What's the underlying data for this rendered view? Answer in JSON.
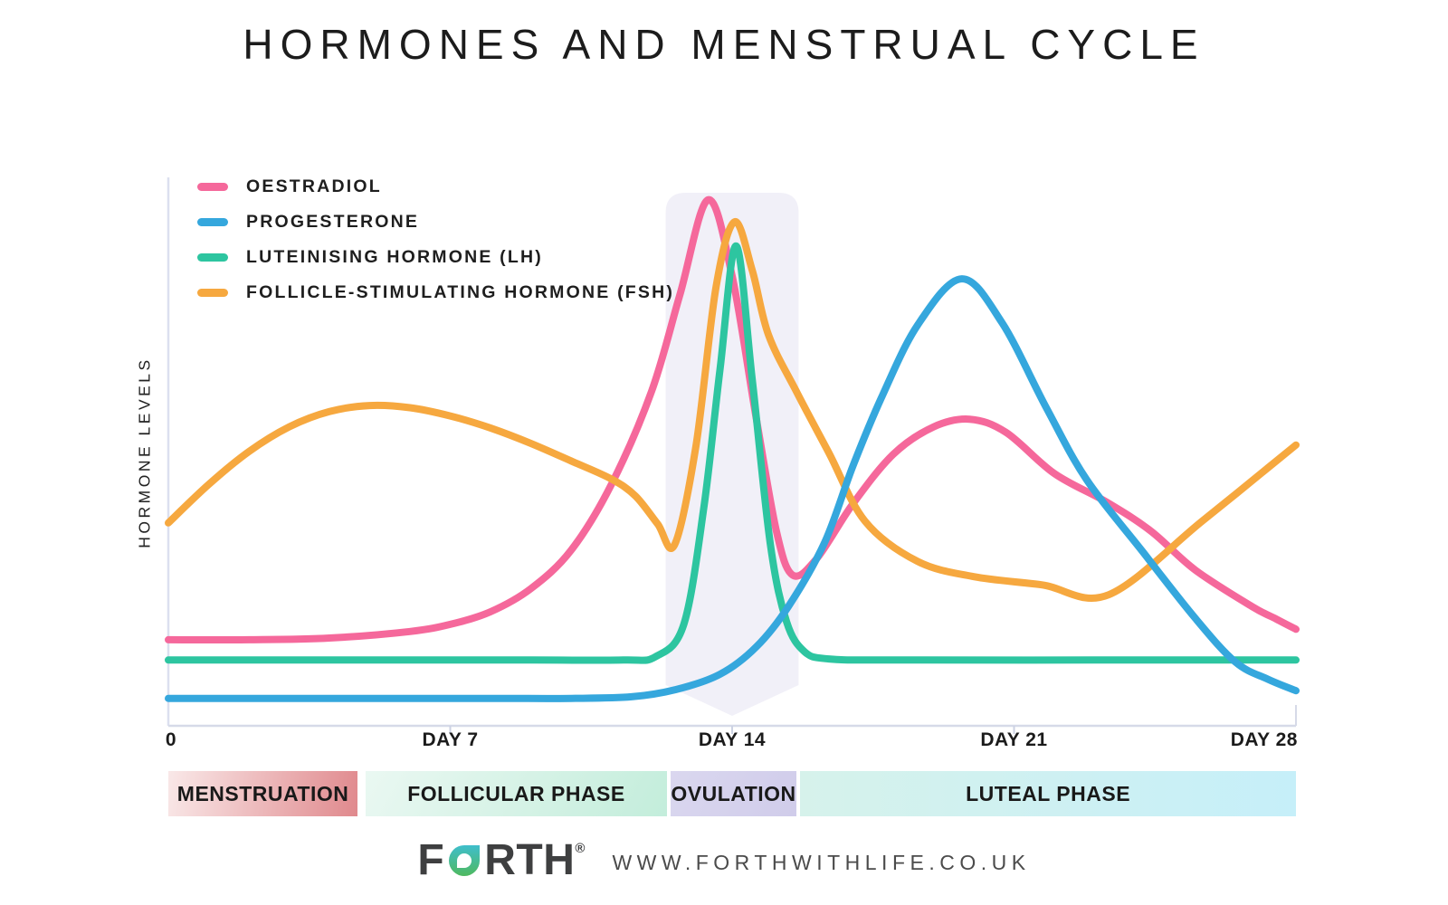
{
  "chart_data": {
    "type": "line",
    "title": "HORMONES AND MENSTRUAL CYCLE",
    "xlabel": "",
    "ylabel": "HORMONE LEVELS",
    "x_ticks": [
      "0",
      "DAY 7",
      "DAY 14",
      "DAY 21",
      "DAY 28"
    ],
    "x_tick_days": [
      0,
      7,
      14,
      21,
      28
    ],
    "x_range_days": [
      0,
      28
    ],
    "y_range": [
      0,
      10
    ],
    "grid": false,
    "legend_position": "top-left",
    "axis_color": "#dce0ef",
    "series": [
      {
        "name": "OESTRADIOL",
        "color": "#F5689B",
        "points": [
          [
            0,
            1.57
          ],
          [
            2,
            1.57
          ],
          [
            4,
            1.6
          ],
          [
            6,
            1.72
          ],
          [
            7,
            1.85
          ],
          [
            8,
            2.08
          ],
          [
            9,
            2.5
          ],
          [
            10,
            3.2
          ],
          [
            11,
            4.4
          ],
          [
            12,
            6.1
          ],
          [
            12.7,
            7.85
          ],
          [
            13.4,
            9.59
          ],
          [
            14,
            8.2
          ],
          [
            14.6,
            5.6
          ],
          [
            15.1,
            3.55
          ],
          [
            15.5,
            2.75
          ],
          [
            16.1,
            3.05
          ],
          [
            17,
            4.05
          ],
          [
            18,
            4.95
          ],
          [
            19,
            5.45
          ],
          [
            19.9,
            5.59
          ],
          [
            20.8,
            5.35
          ],
          [
            22,
            4.6
          ],
          [
            23.3,
            4.08
          ],
          [
            24.4,
            3.55
          ],
          [
            25.5,
            2.84
          ],
          [
            26.9,
            2.18
          ],
          [
            27.5,
            1.95
          ],
          [
            28,
            1.76
          ]
        ]
      },
      {
        "name": "PROGESTERONE",
        "color": "#35A7DD",
        "points": [
          [
            0,
            0.5
          ],
          [
            4,
            0.5
          ],
          [
            8,
            0.5
          ],
          [
            10,
            0.5
          ],
          [
            11.5,
            0.53
          ],
          [
            12.6,
            0.66
          ],
          [
            13.7,
            0.94
          ],
          [
            14.6,
            1.44
          ],
          [
            15.4,
            2.18
          ],
          [
            16.3,
            3.35
          ],
          [
            17,
            4.74
          ],
          [
            17.7,
            5.97
          ],
          [
            18.6,
            7.3
          ],
          [
            19.7,
            8.15
          ],
          [
            20.7,
            7.35
          ],
          [
            21.8,
            5.8
          ],
          [
            22.8,
            4.49
          ],
          [
            24.2,
            3.17
          ],
          [
            25.5,
            1.96
          ],
          [
            26.5,
            1.16
          ],
          [
            27.3,
            0.85
          ],
          [
            28,
            0.64
          ]
        ]
      },
      {
        "name": "LUTEINISING HORMONE (LH)",
        "color": "#2DC5A0",
        "points": [
          [
            0,
            1.2
          ],
          [
            5,
            1.2
          ],
          [
            9,
            1.2
          ],
          [
            11.3,
            1.2
          ],
          [
            12.1,
            1.26
          ],
          [
            12.8,
            1.85
          ],
          [
            13.3,
            4
          ],
          [
            13.7,
            6.5
          ],
          [
            14.1,
            8.75
          ],
          [
            14.5,
            6.3
          ],
          [
            14.95,
            3.3
          ],
          [
            15.35,
            1.9
          ],
          [
            15.8,
            1.35
          ],
          [
            16.4,
            1.22
          ],
          [
            18,
            1.2
          ],
          [
            23,
            1.2
          ],
          [
            28,
            1.2
          ]
        ]
      },
      {
        "name": "FOLLICLE-STIMULATING HORMONE (FSH)",
        "color": "#F6A83F",
        "points": [
          [
            0,
            3.7
          ],
          [
            1,
            4.4
          ],
          [
            2,
            5
          ],
          [
            3,
            5.45
          ],
          [
            4,
            5.73
          ],
          [
            5,
            5.84
          ],
          [
            6,
            5.8
          ],
          [
            7,
            5.65
          ],
          [
            8,
            5.43
          ],
          [
            9,
            5.15
          ],
          [
            10,
            4.83
          ],
          [
            11,
            4.5
          ],
          [
            11.6,
            4.19
          ],
          [
            12.15,
            3.68
          ],
          [
            12.57,
            3.3
          ],
          [
            13.1,
            5.1
          ],
          [
            13.6,
            8
          ],
          [
            14.06,
            9.19
          ],
          [
            14.5,
            8.3
          ],
          [
            14.9,
            7.13
          ],
          [
            15.6,
            6.09
          ],
          [
            16.4,
            4.98
          ],
          [
            17.3,
            3.73
          ],
          [
            18.6,
            3
          ],
          [
            20,
            2.72
          ],
          [
            21.7,
            2.57
          ],
          [
            23.35,
            2.39
          ],
          [
            25.7,
            3.75
          ],
          [
            28,
            5.12
          ]
        ]
      }
    ],
    "draw_order": [
      0,
      2,
      3,
      1
    ],
    "ovulation_highlight": {
      "start_day": 12.35,
      "end_day": 15.65,
      "tip_day": 14,
      "color": "#E8E7F4",
      "opacity": 0.62
    },
    "phases": [
      {
        "label": "MENSTRUATION",
        "start_day": 0,
        "end_day": 4.7,
        "color_start": "#F9E8E8",
        "color_end": "#E0898D",
        "gradient_deg": 100
      },
      {
        "label": "FOLLICULAR PHASE",
        "start_day": 4.9,
        "end_day": 12.38,
        "color_start": "#EAF8F2",
        "color_end": "#C3EDDB",
        "gradient_deg": 120
      },
      {
        "label": "OVULATION",
        "start_day": 12.47,
        "end_day": 15.6,
        "color_start": "#DAD7EF",
        "color_end": "#D0CCEA",
        "gradient_deg": 115
      },
      {
        "label": "LUTEAL PHASE",
        "start_day": 15.69,
        "end_day": 28,
        "color_start": "#D6F2EB",
        "color_end": "#C6EFF9",
        "gradient_deg": 90
      }
    ]
  },
  "footer": {
    "brand": "FORTH",
    "registered": "®",
    "website": "WWW.FORTHWITHLIFE.CO.UK"
  }
}
